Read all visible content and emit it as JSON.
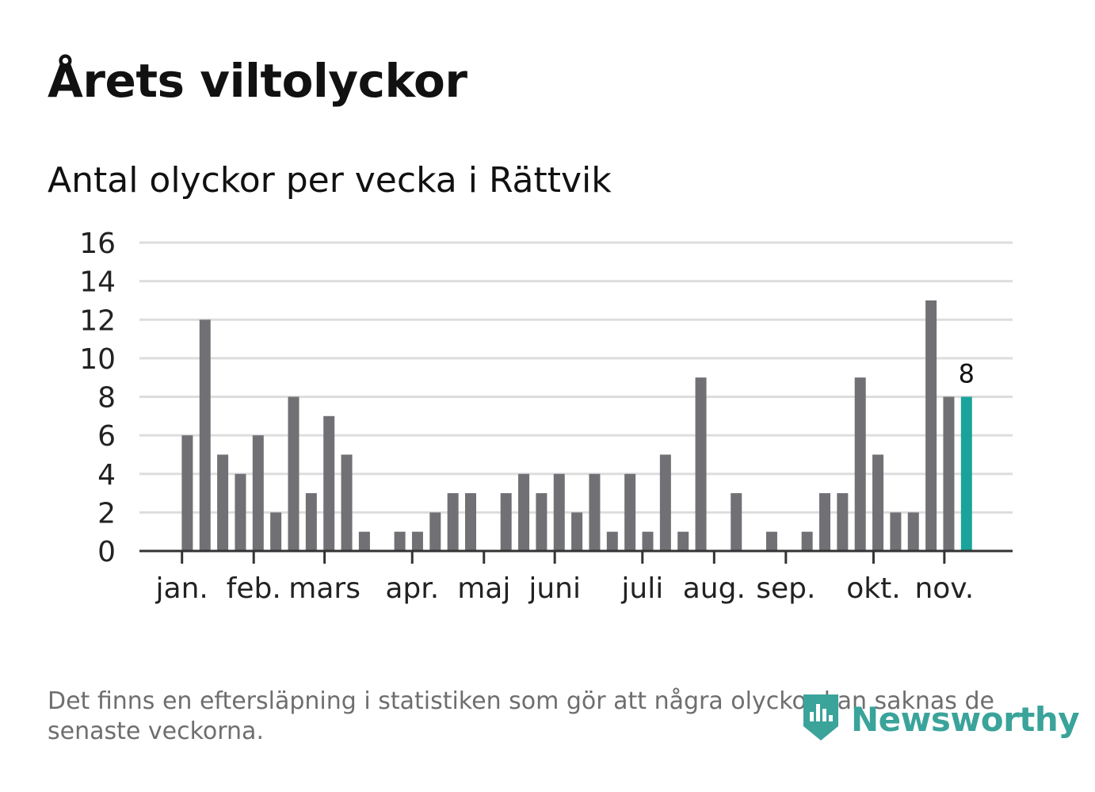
{
  "title": "Årets viltolyckor",
  "subtitle": "Antal olyckor per vecka i Rättvik",
  "footnote": "Det finns en eftersläpning i statistiken som gör att några olyckor kan saknas de senaste veckorna.",
  "brand": {
    "name": "Newsworthy",
    "logo_icon": "newsworthy-logo-icon"
  },
  "colors": {
    "bar": "#717074",
    "highlight": "#1aa39a",
    "grid": "#dddddd",
    "axis": "#333333",
    "brand": "#3aa39a"
  },
  "chart_data": {
    "type": "bar",
    "title": "Antal olyckor per vecka i Rättvik",
    "xlabel": "",
    "ylabel": "",
    "ylim": [
      0,
      16
    ],
    "yticks": [
      "0",
      "2",
      "4",
      "6",
      "8",
      "10",
      "12",
      "14",
      "16"
    ],
    "grid": true,
    "legend": "none",
    "weeks": [
      1,
      2,
      3,
      4,
      5,
      6,
      7,
      8,
      9,
      10,
      11,
      12,
      13,
      14,
      15,
      16,
      17,
      18,
      19,
      20,
      21,
      22,
      23,
      24,
      25,
      26,
      27,
      28,
      29,
      30,
      31,
      32,
      33,
      34,
      35,
      36,
      37,
      38,
      39,
      40,
      41,
      42,
      43,
      44,
      45,
      46,
      47
    ],
    "values": [
      0,
      0,
      6,
      12,
      5,
      4,
      6,
      2,
      8,
      3,
      7,
      5,
      1,
      0,
      1,
      1,
      2,
      3,
      3,
      0,
      3,
      4,
      3,
      4,
      2,
      4,
      1,
      4,
      1,
      5,
      1,
      9,
      0,
      3,
      0,
      1,
      0,
      1,
      3,
      3,
      9,
      5,
      2,
      2,
      13,
      8,
      8
    ],
    "highlight_index": 46,
    "highlight_label": "8",
    "month_labels": [
      {
        "label": "jan.",
        "week": 2.7
      },
      {
        "label": "feb.",
        "week": 6.75
      },
      {
        "label": "mars",
        "week": 10.75
      },
      {
        "label": "apr.",
        "week": 15.7
      },
      {
        "label": "maj",
        "week": 19.75
      },
      {
        "label": "juni",
        "week": 23.75
      },
      {
        "label": "juli",
        "week": 28.7
      },
      {
        "label": "aug.",
        "week": 32.75
      },
      {
        "label": "sep.",
        "week": 36.8
      },
      {
        "label": "okt.",
        "week": 41.75
      },
      {
        "label": "nov.",
        "week": 45.75
      }
    ]
  }
}
